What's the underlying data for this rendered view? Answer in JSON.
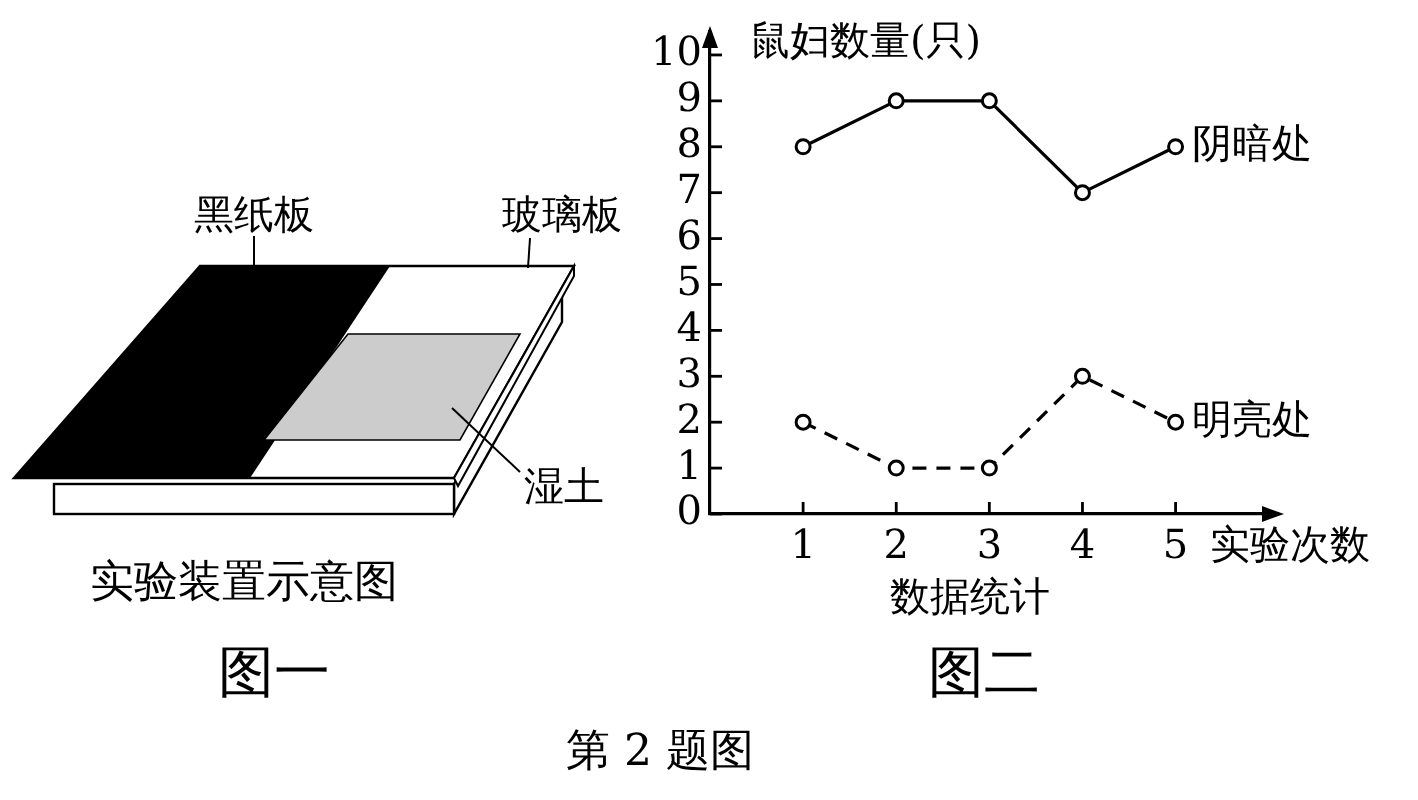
{
  "chart_data": [
    {
      "type": "other",
      "annotations": [
        "黑纸板",
        "玻璃板",
        "湿土",
        "实验装置示意图",
        "图一"
      ]
    },
    {
      "type": "line",
      "x": [
        1,
        2,
        3,
        4,
        5
      ],
      "xlim": [
        0,
        6.1
      ],
      "xticks": [
        1,
        2,
        3,
        4,
        5
      ],
      "ylim": [
        0,
        10.5
      ],
      "yticks": [
        0,
        1,
        2,
        3,
        4,
        5,
        6,
        7,
        8,
        9,
        10
      ],
      "xlabel": "实验次数",
      "ylabel": "鼠妇数量(只)",
      "grid": false,
      "marker": "circle",
      "series": [
        {
          "name": "阴暗处",
          "color": "#000000",
          "values": [
            8,
            9,
            9,
            7,
            8
          ],
          "line_style": "solid"
        },
        {
          "name": "明亮处",
          "color": "#000000",
          "values": [
            2,
            1,
            1,
            3,
            2
          ],
          "line_style": "dashed"
        }
      ],
      "annotations": [
        "数据统计",
        "图二",
        "第 2 题图"
      ]
    }
  ]
}
